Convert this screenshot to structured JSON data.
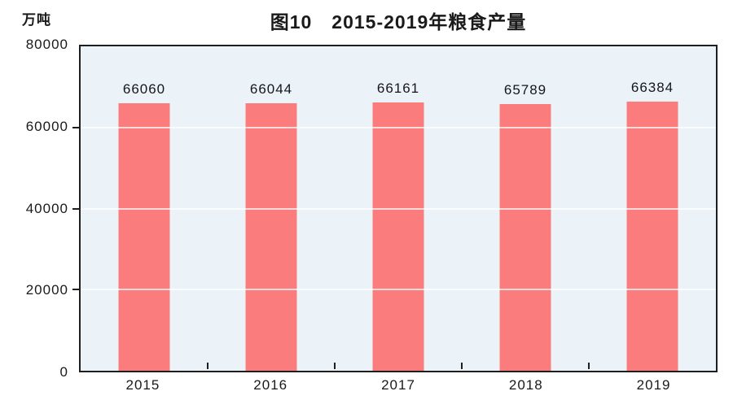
{
  "chart_data": {
    "type": "bar",
    "title": "图10　2015-2019年粮食产量",
    "unit_label": "万吨",
    "categories": [
      "2015",
      "2016",
      "2017",
      "2018",
      "2019"
    ],
    "values": [
      66060,
      66044,
      66161,
      65789,
      66384
    ],
    "data_labels": [
      "66060",
      "66044",
      "66161",
      "65789",
      "66384"
    ],
    "ylim": [
      0,
      80000
    ],
    "ytick_values": [
      0,
      20000,
      40000,
      60000,
      80000
    ],
    "ytick_labels": [
      "0",
      "20000",
      "40000",
      "60000",
      "80000"
    ],
    "grid": "horizontal white lines, shown",
    "legend_position": "none",
    "colors": {
      "bar": "#fa7c7c",
      "plot_background": "#ecf3f8",
      "plot_border": "#1e1e1e",
      "text": "#1a1a1a",
      "gridline": "#ffffff"
    }
  }
}
